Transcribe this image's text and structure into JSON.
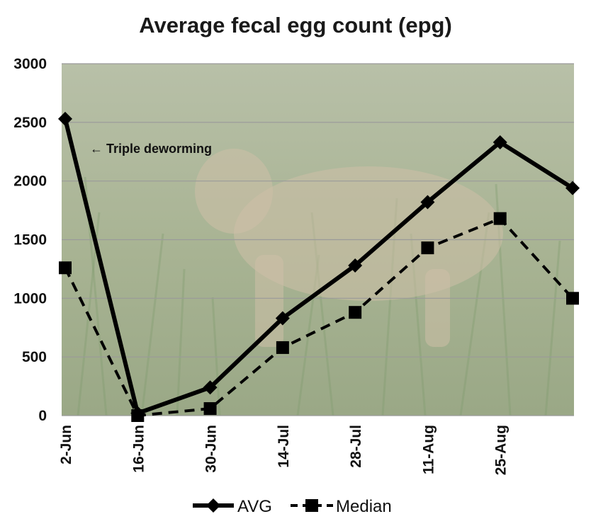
{
  "chart_data": {
    "type": "line",
    "title": "Average fecal egg count (epg)",
    "xlabel": "",
    "ylabel": "",
    "ylim": [
      0,
      3000
    ],
    "yticks": [
      "0",
      "500",
      "1000",
      "1500",
      "2000",
      "2500",
      "3000"
    ],
    "x_tick_labels": [
      "2-Jun",
      "16-Jun",
      "30-Jun",
      "14-Jul",
      "28-Jul",
      "11-Aug",
      "25-Aug"
    ],
    "x_points": 8,
    "grid": true,
    "legend_position": "bottom",
    "series": [
      {
        "name": "AVG",
        "marker": "diamond",
        "line_style": "solid",
        "values": [
          2530,
          20,
          240,
          830,
          1280,
          1820,
          2330,
          1940
        ]
      },
      {
        "name": "Median",
        "marker": "square",
        "line_style": "dashed",
        "values": [
          1260,
          0,
          60,
          580,
          880,
          1430,
          1680,
          1000
        ]
      }
    ],
    "annotation": {
      "text": "Triple deworming",
      "arrow": "←",
      "point_index": 0
    },
    "colors": {
      "line": "#000000",
      "grid": "#9a9a9a",
      "plot_background": "#9aa88a"
    }
  }
}
